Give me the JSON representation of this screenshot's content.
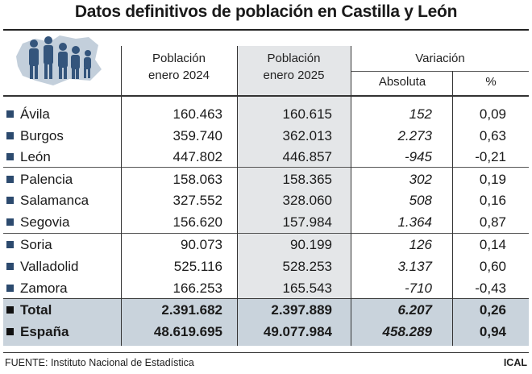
{
  "title": "Datos definitivos de población en Castilla y León",
  "header": {
    "col_2024": [
      "Población",
      "enero 2024"
    ],
    "col_2025": [
      "Población",
      "enero 2025"
    ],
    "variation": "Variación",
    "absolute": "Absoluta",
    "percent": "%"
  },
  "rows": [
    {
      "name": "Ávila",
      "p2024": "160.463",
      "p2025": "160.615",
      "abs": "152",
      "pct": "0,09"
    },
    {
      "name": "Burgos",
      "p2024": "359.740",
      "p2025": "362.013",
      "abs": "2.273",
      "pct": "0,63"
    },
    {
      "name": "León",
      "p2024": "447.802",
      "p2025": "446.857",
      "abs": "-945",
      "pct": "-0,21"
    },
    {
      "name": "Palencia",
      "p2024": "158.063",
      "p2025": "158.365",
      "abs": "302",
      "pct": "0,19"
    },
    {
      "name": "Salamanca",
      "p2024": "327.552",
      "p2025": "328.060",
      "abs": "508",
      "pct": "0,16"
    },
    {
      "name": "Segovia",
      "p2024": "156.620",
      "p2025": "157.984",
      "abs": "1.364",
      "pct": "0,87"
    },
    {
      "name": "Soria",
      "p2024": "90.073",
      "p2025": "90.199",
      "abs": "126",
      "pct": "0,14"
    },
    {
      "name": "Valladolid",
      "p2024": "525.116",
      "p2025": "528.253",
      "abs": "3.137",
      "pct": "0,60"
    },
    {
      "name": "Zamora",
      "p2024": "166.253",
      "p2025": "165.543",
      "abs": "-710",
      "pct": "-0,43"
    }
  ],
  "totals": [
    {
      "name": "Total",
      "p2024": "2.391.682",
      "p2025": "2.397.889",
      "abs": "6.207",
      "pct": "0,26"
    },
    {
      "name": "España",
      "p2024": "48.619.695",
      "p2025": "49.077.984",
      "abs": "458.289",
      "pct": "0,94"
    }
  ],
  "footer": {
    "source": "FUENTE: Instituto Nacional de Estadística",
    "agency": "ICAL"
  },
  "icons": {
    "logo": "people-map-icon"
  },
  "colors": {
    "accent": "#2c4a6e",
    "shade_2025": "#e4e6e8",
    "shade_total": "#c9d3dc"
  }
}
